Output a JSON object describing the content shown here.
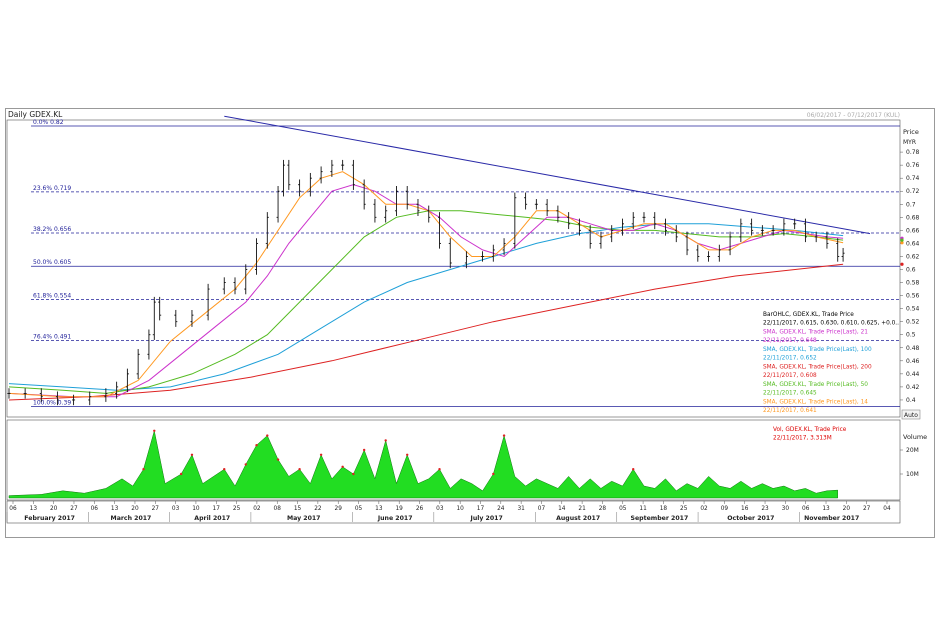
{
  "chart_data": {
    "type": "line",
    "title": "Daily GDEX.KL",
    "date_range": "06/02/2017 - 07/12/2017 (KUL)",
    "price_axis": {
      "label": "Price",
      "unit": "MYR",
      "ylim": [
        0.38,
        0.82
      ],
      "ticks": [
        "0.78",
        "0.76",
        "0.74",
        "0.72",
        "0.7",
        "0.68",
        "0.66",
        "0.64",
        "0.62",
        "0.6",
        "0.58",
        "0.56",
        "0.54",
        "0.52",
        "0.5",
        "0.48",
        "0.46",
        "0.44",
        "0.42",
        "0.4"
      ]
    },
    "volume_axis": {
      "label": "Volume",
      "ticks": [
        "20M",
        "10M"
      ]
    },
    "auto_label": "Auto",
    "fib_levels": [
      {
        "label": "0.0%",
        "value": 0.82,
        "value_label": "0.82"
      },
      {
        "label": "23.6%",
        "value": 0.719,
        "value_label": "0.719"
      },
      {
        "label": "38.2%",
        "value": 0.656,
        "value_label": "0.656"
      },
      {
        "label": "50.0%",
        "value": 0.605,
        "value_label": "0.605"
      },
      {
        "label": "61.8%",
        "value": 0.554,
        "value_label": "0.554"
      },
      {
        "label": "76.4%",
        "value": 0.491,
        "value_label": "0.491"
      },
      {
        "label": "100.0%",
        "value": 0.39,
        "value_label": "0.39"
      }
    ],
    "x_day_ticks": [
      "06",
      "13",
      "20",
      "27",
      "06",
      "13",
      "20",
      "27",
      "03",
      "10",
      "17",
      "25",
      "02",
      "08",
      "15",
      "22",
      "29",
      "05",
      "13",
      "19",
      "26",
      "03",
      "10",
      "17",
      "24",
      "31",
      "07",
      "14",
      "21",
      "28",
      "05",
      "11",
      "18",
      "25",
      "02",
      "09",
      "16",
      "23",
      "30",
      "06",
      "13",
      "20",
      "27",
      "04"
    ],
    "x_month_labels": [
      "February 2017",
      "March 2017",
      "April 2017",
      "May 2017",
      "June 2017",
      "July 2017",
      "August 2017",
      "September 2017",
      "October 2017",
      "November 2017"
    ],
    "legend": [
      {
        "title": "BarOHLC, GDEX.KL, Trade Price",
        "value": "22/11/2017, 0.615, 0.630, 0.610, 0.625, +0.0..",
        "color": "#000000"
      },
      {
        "title": "SMA, GDEX.KL, Trade Price(Last), 21",
        "value": "22/11/2017, 0.648",
        "color": "#cc33cc"
      },
      {
        "title": "SMA, GDEX.KL, Trade Price(Last), 100",
        "value": "22/11/2017, 0.652",
        "color": "#1fa0d8"
      },
      {
        "title": "SMA, GDEX.KL, Trade Price(Last), 200",
        "value": "22/11/2017, 0.608",
        "color": "#dd2222"
      },
      {
        "title": "SMA, GDEX.KL, Trade Price(Last), 50",
        "value": "22/11/2017, 0.645",
        "color": "#55bb22"
      },
      {
        "title": "SMA, GDEX.KL, Trade Price(Last), 14",
        "value": "22/11/2017, 0.641",
        "color": "#ff9922"
      }
    ],
    "volume_legend": {
      "title": "Vol, GDEX.KL, Trade Price",
      "value": "22/11/2017, 3.313M",
      "color": "#dd0000"
    },
    "series": {
      "price_close": [
        [
          0,
          0.41
        ],
        [
          3,
          0.41
        ],
        [
          6,
          0.405
        ],
        [
          9,
          0.4
        ],
        [
          12,
          0.4
        ],
        [
          15,
          0.405
        ],
        [
          18,
          0.41
        ],
        [
          20,
          0.42
        ],
        [
          22,
          0.44
        ],
        [
          24,
          0.47
        ],
        [
          26,
          0.5
        ],
        [
          27,
          0.55
        ],
        [
          28,
          0.53
        ],
        [
          31,
          0.52
        ],
        [
          34,
          0.53
        ],
        [
          37,
          0.57
        ],
        [
          40,
          0.58
        ],
        [
          42,
          0.57
        ],
        [
          44,
          0.6
        ],
        [
          46,
          0.64
        ],
        [
          48,
          0.68
        ],
        [
          50,
          0.72
        ],
        [
          51,
          0.76
        ],
        [
          52,
          0.73
        ],
        [
          54,
          0.72
        ],
        [
          56,
          0.74
        ],
        [
          58,
          0.75
        ],
        [
          60,
          0.76
        ],
        [
          62,
          0.76
        ],
        [
          64,
          0.73
        ],
        [
          66,
          0.7
        ],
        [
          68,
          0.68
        ],
        [
          70,
          0.69
        ],
        [
          72,
          0.72
        ],
        [
          74,
          0.7
        ],
        [
          76,
          0.69
        ],
        [
          78,
          0.68
        ],
        [
          80,
          0.64
        ],
        [
          82,
          0.61
        ],
        [
          85,
          0.62
        ],
        [
          88,
          0.62
        ],
        [
          90,
          0.63
        ],
        [
          92,
          0.64
        ],
        [
          94,
          0.71
        ],
        [
          96,
          0.7
        ],
        [
          98,
          0.7
        ],
        [
          100,
          0.69
        ],
        [
          102,
          0.68
        ],
        [
          104,
          0.67
        ],
        [
          106,
          0.66
        ],
        [
          108,
          0.64
        ],
        [
          110,
          0.65
        ],
        [
          112,
          0.66
        ],
        [
          114,
          0.67
        ],
        [
          116,
          0.68
        ],
        [
          118,
          0.68
        ],
        [
          120,
          0.67
        ],
        [
          122,
          0.66
        ],
        [
          124,
          0.65
        ],
        [
          126,
          0.63
        ],
        [
          128,
          0.62
        ],
        [
          130,
          0.62
        ],
        [
          132,
          0.63
        ],
        [
          134,
          0.65
        ],
        [
          136,
          0.67
        ],
        [
          138,
          0.66
        ],
        [
          140,
          0.66
        ],
        [
          142,
          0.66
        ],
        [
          144,
          0.67
        ],
        [
          146,
          0.67
        ],
        [
          148,
          0.65
        ],
        [
          150,
          0.65
        ],
        [
          152,
          0.64
        ],
        [
          154,
          0.62
        ],
        [
          155,
          0.625
        ]
      ],
      "sma14": [
        [
          0,
          0.41
        ],
        [
          10,
          0.405
        ],
        [
          18,
          0.405
        ],
        [
          24,
          0.43
        ],
        [
          30,
          0.49
        ],
        [
          36,
          0.53
        ],
        [
          42,
          0.57
        ],
        [
          46,
          0.61
        ],
        [
          50,
          0.66
        ],
        [
          54,
          0.71
        ],
        [
          58,
          0.74
        ],
        [
          62,
          0.75
        ],
        [
          66,
          0.73
        ],
        [
          70,
          0.7
        ],
        [
          74,
          0.7
        ],
        [
          78,
          0.69
        ],
        [
          82,
          0.65
        ],
        [
          86,
          0.62
        ],
        [
          90,
          0.62
        ],
        [
          94,
          0.65
        ],
        [
          98,
          0.69
        ],
        [
          102,
          0.69
        ],
        [
          106,
          0.67
        ],
        [
          110,
          0.65
        ],
        [
          114,
          0.66
        ],
        [
          118,
          0.67
        ],
        [
          122,
          0.67
        ],
        [
          126,
          0.65
        ],
        [
          130,
          0.63
        ],
        [
          134,
          0.63
        ],
        [
          138,
          0.65
        ],
        [
          142,
          0.66
        ],
        [
          146,
          0.66
        ],
        [
          150,
          0.65
        ],
        [
          155,
          0.641
        ]
      ],
      "sma21": [
        [
          0,
          0.41
        ],
        [
          12,
          0.405
        ],
        [
          20,
          0.405
        ],
        [
          26,
          0.43
        ],
        [
          32,
          0.47
        ],
        [
          38,
          0.51
        ],
        [
          44,
          0.55
        ],
        [
          48,
          0.59
        ],
        [
          52,
          0.64
        ],
        [
          56,
          0.68
        ],
        [
          60,
          0.72
        ],
        [
          64,
          0.73
        ],
        [
          68,
          0.72
        ],
        [
          72,
          0.7
        ],
        [
          76,
          0.7
        ],
        [
          80,
          0.68
        ],
        [
          84,
          0.65
        ],
        [
          88,
          0.63
        ],
        [
          92,
          0.62
        ],
        [
          96,
          0.65
        ],
        [
          100,
          0.68
        ],
        [
          104,
          0.68
        ],
        [
          108,
          0.67
        ],
        [
          112,
          0.66
        ],
        [
          116,
          0.66
        ],
        [
          120,
          0.67
        ],
        [
          124,
          0.66
        ],
        [
          128,
          0.64
        ],
        [
          132,
          0.63
        ],
        [
          136,
          0.64
        ],
        [
          140,
          0.65
        ],
        [
          144,
          0.66
        ],
        [
          148,
          0.655
        ],
        [
          152,
          0.65
        ],
        [
          155,
          0.648
        ]
      ],
      "sma50": [
        [
          0,
          0.42
        ],
        [
          10,
          0.415
        ],
        [
          18,
          0.41
        ],
        [
          26,
          0.42
        ],
        [
          34,
          0.44
        ],
        [
          42,
          0.47
        ],
        [
          48,
          0.5
        ],
        [
          54,
          0.55
        ],
        [
          60,
          0.6
        ],
        [
          66,
          0.65
        ],
        [
          72,
          0.68
        ],
        [
          78,
          0.69
        ],
        [
          84,
          0.69
        ],
        [
          90,
          0.685
        ],
        [
          96,
          0.68
        ],
        [
          102,
          0.675
        ],
        [
          108,
          0.665
        ],
        [
          114,
          0.66
        ],
        [
          120,
          0.66
        ],
        [
          126,
          0.655
        ],
        [
          132,
          0.65
        ],
        [
          138,
          0.65
        ],
        [
          144,
          0.655
        ],
        [
          150,
          0.65
        ],
        [
          155,
          0.645
        ]
      ],
      "sma100": [
        [
          0,
          0.425
        ],
        [
          10,
          0.42
        ],
        [
          20,
          0.415
        ],
        [
          30,
          0.42
        ],
        [
          40,
          0.44
        ],
        [
          50,
          0.47
        ],
        [
          58,
          0.51
        ],
        [
          66,
          0.55
        ],
        [
          74,
          0.58
        ],
        [
          82,
          0.6
        ],
        [
          90,
          0.62
        ],
        [
          98,
          0.64
        ],
        [
          106,
          0.655
        ],
        [
          114,
          0.665
        ],
        [
          122,
          0.67
        ],
        [
          130,
          0.67
        ],
        [
          138,
          0.665
        ],
        [
          146,
          0.66
        ],
        [
          155,
          0.652
        ]
      ],
      "sma200": [
        [
          0,
          0.4
        ],
        [
          15,
          0.405
        ],
        [
          30,
          0.415
        ],
        [
          45,
          0.435
        ],
        [
          60,
          0.46
        ],
        [
          75,
          0.49
        ],
        [
          90,
          0.52
        ],
        [
          105,
          0.545
        ],
        [
          120,
          0.57
        ],
        [
          135,
          0.59
        ],
        [
          155,
          0.608
        ]
      ],
      "trendline_down": [
        [
          40,
          0.835
        ],
        [
          160,
          0.655
        ]
      ],
      "trendline_up": [
        [
          12,
          0.39
        ],
        [
          155,
          0.608
        ]
      ],
      "volume_millions": [
        [
          0,
          1
        ],
        [
          6,
          1.5
        ],
        [
          10,
          3
        ],
        [
          14,
          2
        ],
        [
          18,
          4
        ],
        [
          21,
          8
        ],
        [
          23,
          5
        ],
        [
          25,
          12
        ],
        [
          27,
          28
        ],
        [
          29,
          6
        ],
        [
          32,
          10
        ],
        [
          34,
          18
        ],
        [
          36,
          6
        ],
        [
          38,
          9
        ],
        [
          40,
          12
        ],
        [
          42,
          5
        ],
        [
          44,
          14
        ],
        [
          46,
          22
        ],
        [
          48,
          26
        ],
        [
          50,
          16
        ],
        [
          52,
          9
        ],
        [
          54,
          12
        ],
        [
          56,
          6
        ],
        [
          58,
          18
        ],
        [
          60,
          8
        ],
        [
          62,
          13
        ],
        [
          64,
          10
        ],
        [
          66,
          20
        ],
        [
          68,
          8
        ],
        [
          70,
          24
        ],
        [
          72,
          6
        ],
        [
          74,
          18
        ],
        [
          76,
          6
        ],
        [
          78,
          8
        ],
        [
          80,
          12
        ],
        [
          82,
          4
        ],
        [
          84,
          8
        ],
        [
          86,
          6
        ],
        [
          88,
          3
        ],
        [
          90,
          10
        ],
        [
          92,
          26
        ],
        [
          94,
          9
        ],
        [
          96,
          5
        ],
        [
          98,
          8
        ],
        [
          100,
          6
        ],
        [
          102,
          4
        ],
        [
          104,
          9
        ],
        [
          106,
          4
        ],
        [
          108,
          8
        ],
        [
          110,
          4
        ],
        [
          112,
          7
        ],
        [
          114,
          5
        ],
        [
          116,
          12
        ],
        [
          118,
          5
        ],
        [
          120,
          4
        ],
        [
          122,
          8
        ],
        [
          124,
          3
        ],
        [
          126,
          6
        ],
        [
          128,
          4
        ],
        [
          130,
          9
        ],
        [
          132,
          5
        ],
        [
          134,
          4
        ],
        [
          136,
          7
        ],
        [
          138,
          4
        ],
        [
          140,
          6
        ],
        [
          142,
          4
        ],
        [
          144,
          5
        ],
        [
          146,
          3
        ],
        [
          148,
          4
        ],
        [
          150,
          2
        ],
        [
          152,
          3
        ],
        [
          154,
          3.3
        ]
      ]
    }
  }
}
